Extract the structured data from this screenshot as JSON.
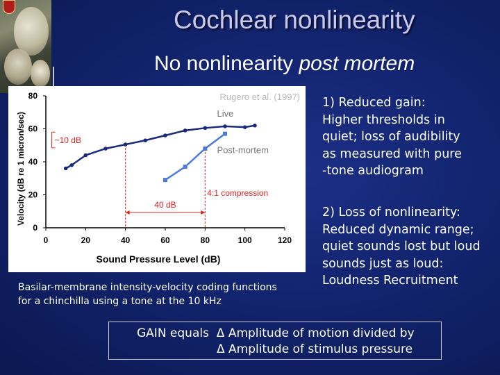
{
  "slide": {
    "title": "Cochlear nonlinearity",
    "subtitle_normal": "No nonlinearity",
    "subtitle_italic": "post mortem",
    "caption_line1": "Basilar-membrane intensity-velocity coding functions",
    "caption_line2": "for a chinchilla using a tone at the 10 kHz",
    "point1": [
      "1) Reduced gain:",
      "Higher thresholds in",
      "quiet; loss of audibility",
      "as measured with pure",
      "-tone audiogram"
    ],
    "point2": [
      "2) Loss of nonlinearity:",
      "Reduced dynamic range;",
      "quiet sounds lost but loud",
      "sounds just as loud:",
      "Loudness Recruitment"
    ],
    "gain_label": "GAIN equals",
    "gain_line1": "Δ Amplitude of motion divided by",
    "gain_line2": "Δ Amplitude of stimulus pressure"
  },
  "chart_data": {
    "type": "line",
    "xlabel": "Sound Pressure Level (dB)",
    "ylabel": "Velocity (dB re 1 micron/sec)",
    "xlim": [
      0,
      120
    ],
    "ylim": [
      0,
      80
    ],
    "x_ticks": [
      "0",
      "20",
      "40",
      "60",
      "80",
      "100",
      "120"
    ],
    "y_ticks": [
      "0",
      "20",
      "40",
      "60",
      "80"
    ],
    "source_label": "Rugero et al. (1997)",
    "annotations": {
      "live": "Live",
      "post_mortem": "Post-mortem",
      "gain_loss": "~10 dB",
      "threshold_shift": "40 dB",
      "compression": "4:1 compression"
    },
    "colors": {
      "live": "#1a2a7a",
      "post_mortem": "#4a7bdc",
      "annotation": "#e02020"
    },
    "series": [
      {
        "name": "Live",
        "x": [
          10,
          13,
          20,
          30,
          40,
          50,
          60,
          70,
          80,
          90,
          100,
          105
        ],
        "y": [
          36,
          38,
          44,
          48,
          50.5,
          53,
          56,
          59,
          60.5,
          61.5,
          61,
          62
        ]
      },
      {
        "name": "Post-mortem",
        "x": [
          60,
          70,
          80,
          90
        ],
        "y": [
          29,
          37,
          48,
          57
        ]
      }
    ]
  }
}
